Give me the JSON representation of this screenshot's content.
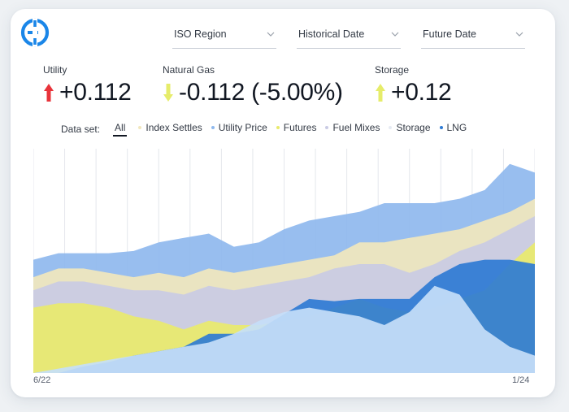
{
  "header": {
    "dropdowns": [
      {
        "label": "ISO Region"
      },
      {
        "label": "Historical Date"
      },
      {
        "label": "Future Date"
      }
    ]
  },
  "metrics": [
    {
      "label": "Utility",
      "value": "+0.112",
      "direction": "up",
      "arrow_color": "#e8333a"
    },
    {
      "label": "Natural Gas",
      "value": "-0.112 (-5.00%)",
      "direction": "down",
      "arrow_color": "#e6ec6a"
    },
    {
      "label": "Storage",
      "value": "+0.12",
      "direction": "up",
      "arrow_color": "#e6ec6a"
    }
  ],
  "filters": {
    "label": "Data set:",
    "options": [
      {
        "label": "All",
        "selected": true
      },
      {
        "label": "Index Settles",
        "color": "#f1e7bd"
      },
      {
        "label": "Utility Price",
        "color": "#8fb9ee"
      },
      {
        "label": "Futures",
        "color": "#e9ea6c"
      },
      {
        "label": "Fuel Mixes",
        "color": "#c9cbe4"
      },
      {
        "label": "Storage",
        "color": "#e6ebf3"
      },
      {
        "label": "LNG",
        "color": "#2f7bd4"
      }
    ]
  },
  "chart_data": {
    "type": "area",
    "x_labels": [
      "6/22",
      "1/24"
    ],
    "grid": true,
    "series": [
      {
        "name": "Storage",
        "color": "#c5def8",
        "values": [
          0,
          2,
          4,
          6,
          8,
          10,
          12,
          14,
          18,
          24,
          28,
          30,
          28,
          26,
          22,
          28,
          40,
          36,
          20,
          12,
          8
        ]
      },
      {
        "name": "LNG",
        "color": "#2f7bd4",
        "values": [
          0,
          0,
          3,
          5,
          8,
          10,
          12,
          18,
          18,
          20,
          27,
          34,
          33,
          34,
          34,
          34,
          44,
          50,
          52,
          52,
          50
        ]
      },
      {
        "name": "Futures",
        "color": "#e9ea6c",
        "values": [
          30,
          32,
          32,
          30,
          26,
          24,
          20,
          24,
          22,
          22,
          24,
          26,
          30,
          34,
          30,
          28,
          30,
          34,
          38,
          50,
          60
        ]
      },
      {
        "name": "Fuel Mixes",
        "color": "#c9cbe4",
        "values": [
          38,
          42,
          42,
          40,
          38,
          38,
          36,
          40,
          38,
          40,
          42,
          44,
          48,
          50,
          50,
          46,
          50,
          56,
          60,
          66,
          72
        ]
      },
      {
        "name": "Index Settles",
        "color": "#f1e7bd",
        "values": [
          44,
          48,
          48,
          46,
          44,
          46,
          44,
          48,
          46,
          48,
          50,
          52,
          54,
          60,
          60,
          62,
          64,
          66,
          70,
          74,
          80
        ]
      },
      {
        "name": "Utility Price",
        "color": "#8fb9ee",
        "values": [
          52,
          55,
          55,
          55,
          56,
          60,
          62,
          64,
          58,
          60,
          66,
          70,
          72,
          74,
          78,
          78,
          78,
          80,
          84,
          96,
          92
        ]
      }
    ]
  }
}
